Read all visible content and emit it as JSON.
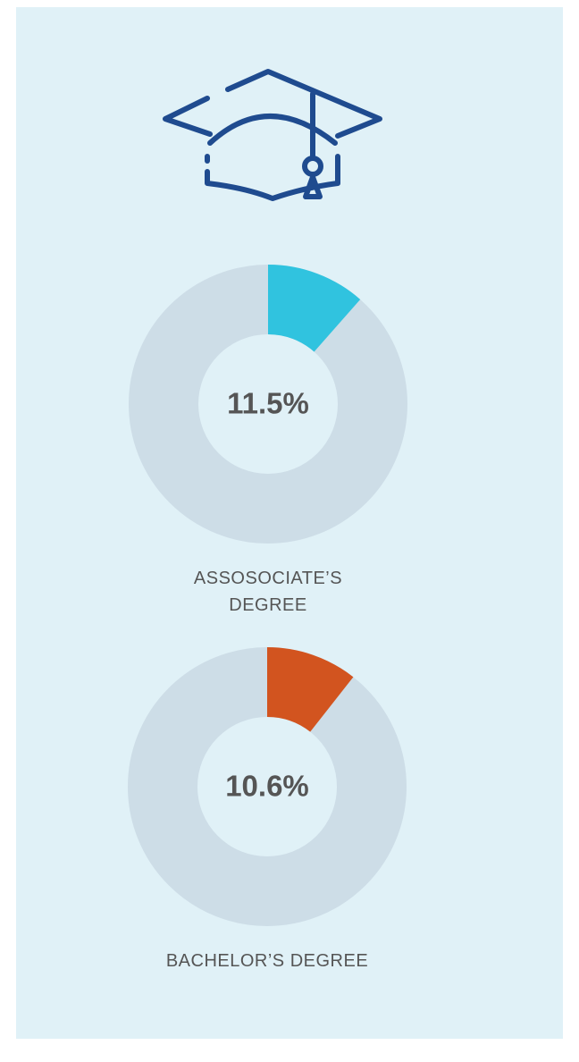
{
  "chart_data": [
    {
      "type": "donut",
      "categories": [
        "ASSOSOCIATE’S DEGREE"
      ],
      "values": [
        11.5
      ],
      "value_labels": [
        "11.5%"
      ],
      "color": "#30c3df",
      "track_color": "#cddde7"
    },
    {
      "type": "donut",
      "categories": [
        "BACHELOR’S DEGREE"
      ],
      "values": [
        10.6
      ],
      "value_labels": [
        "10.6%"
      ],
      "color": "#d2541f",
      "track_color": "#cddde7"
    }
  ]
}
